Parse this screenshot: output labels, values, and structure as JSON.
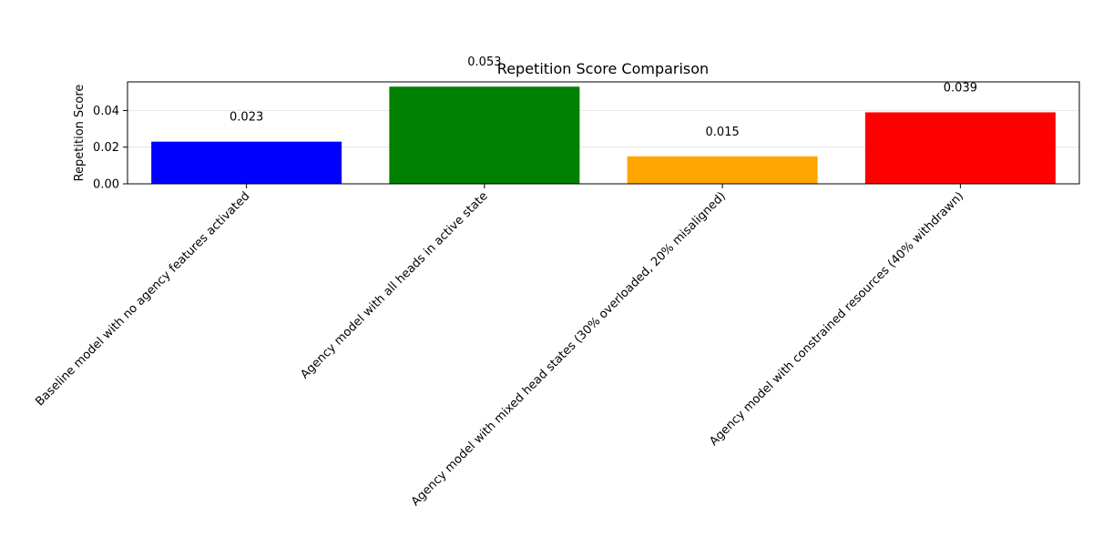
{
  "chart_data": {
    "type": "bar",
    "title": "Repetition Score Comparison",
    "xlabel": "",
    "ylabel": "Repetition Score",
    "categories": [
      "Baseline model with no agency features activated",
      "Agency model with all heads in active state",
      "Agency model with mixed head states (30% overloaded, 20% misaligned)",
      "Agency model with constrained resources (40% withdrawn)"
    ],
    "values": [
      0.023,
      0.053,
      0.015,
      0.039
    ],
    "data_labels": [
      "0.023",
      "0.053",
      "0.015",
      "0.039"
    ],
    "colors": [
      "#0000ff",
      "#008000",
      "#ffa500",
      "#ff0000"
    ],
    "ylim": [
      0,
      0.0556
    ],
    "yticks": [
      0.0,
      0.02,
      0.04
    ],
    "ytick_labels": [
      "0.00",
      "0.02",
      "0.04"
    ],
    "grid": "y",
    "legend": "none"
  }
}
